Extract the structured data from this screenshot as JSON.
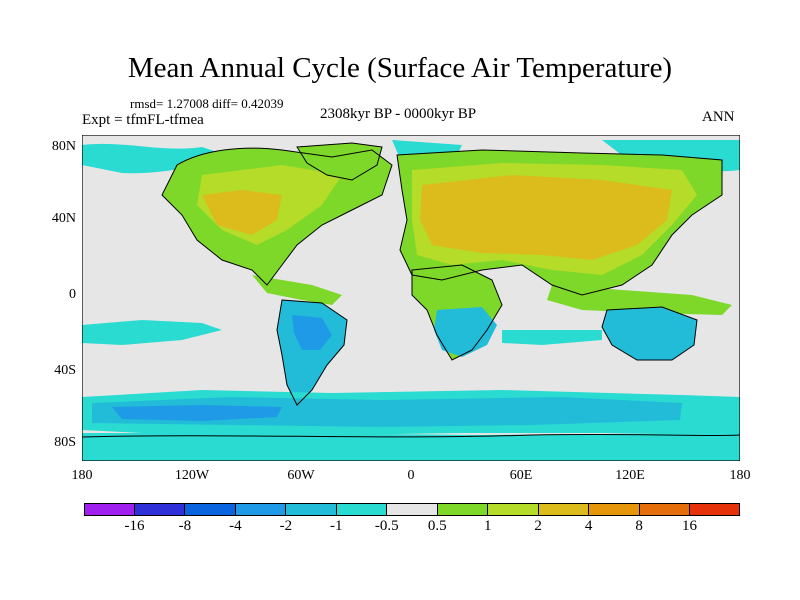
{
  "title": "Mean Annual Cycle (Surface Air Temperature)",
  "stats_line": "rmsd= 1.27008  diff= 0.42039",
  "experiment_label": "Expt = tfmFL-tfmea",
  "period_label": "2308kyr BP - 0000kyr BP",
  "season_label": "ANN",
  "lat_labels": [
    "80N",
    "40N",
    "0",
    "40S",
    "80S"
  ],
  "lon_labels": [
    "180",
    "120W",
    "60W",
    "0",
    "60E",
    "120E",
    "180"
  ],
  "colorbar": {
    "labels": [
      "-16",
      "-8",
      "-4",
      "-2",
      "-1",
      "-0.5",
      "0.5",
      "1",
      "2",
      "4",
      "8",
      "16"
    ],
    "colors": [
      "#a020f0",
      "#3030d8",
      "#0a64e0",
      "#1e9ae6",
      "#22bcd8",
      "#2adbd2",
      "#e6e6e6",
      "#7dd82a",
      "#b4dc28",
      "#dcbc1c",
      "#e6960a",
      "#e66e0a",
      "#e6320a"
    ]
  },
  "colors": {
    "background_ocean": "#e6e6e6",
    "land_warm": "#dcbc1c",
    "land_mild": "#b4dc28",
    "green": "#7dd82a",
    "cyan": "#2adbd2",
    "cool_blue": "#22bcd8",
    "medium_blue": "#1e9ae6",
    "coastline": "#000000"
  }
}
